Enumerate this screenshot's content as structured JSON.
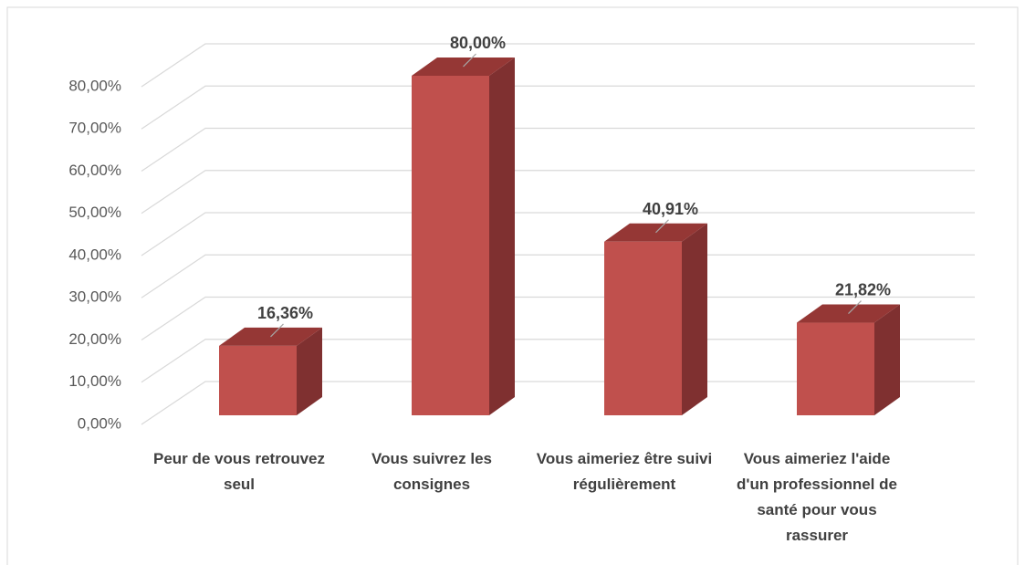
{
  "chart_data": {
    "type": "bar3d",
    "categories": [
      "Peur de vous retrouvez seul",
      "Vous suivrez les consignes",
      "Vous aimeriez être suivi régulièrement",
      "Vous aimeriez l'aide d'un professionnel de santé pour vous rassurer"
    ],
    "values": [
      16.36,
      80,
      40.91,
      21.82
    ],
    "value_labels": [
      "16,36%",
      "80,00%",
      "40,91%",
      "21,82%"
    ],
    "color": "#c0504d",
    "ylim": [
      0,
      80
    ],
    "yticks": [
      {
        "value": 0,
        "label": "0,00%"
      },
      {
        "value": 10,
        "label": "10,00%"
      },
      {
        "value": 20,
        "label": "20,00%"
      },
      {
        "value": 30,
        "label": "30,00%"
      },
      {
        "value": 40,
        "label": "40,00%"
      },
      {
        "value": 50,
        "label": "50,00%"
      },
      {
        "value": 60,
        "label": "60,00%"
      },
      {
        "value": 70,
        "label": "70,00%"
      },
      {
        "value": 80,
        "label": "80,00%"
      }
    ],
    "grid": true
  }
}
